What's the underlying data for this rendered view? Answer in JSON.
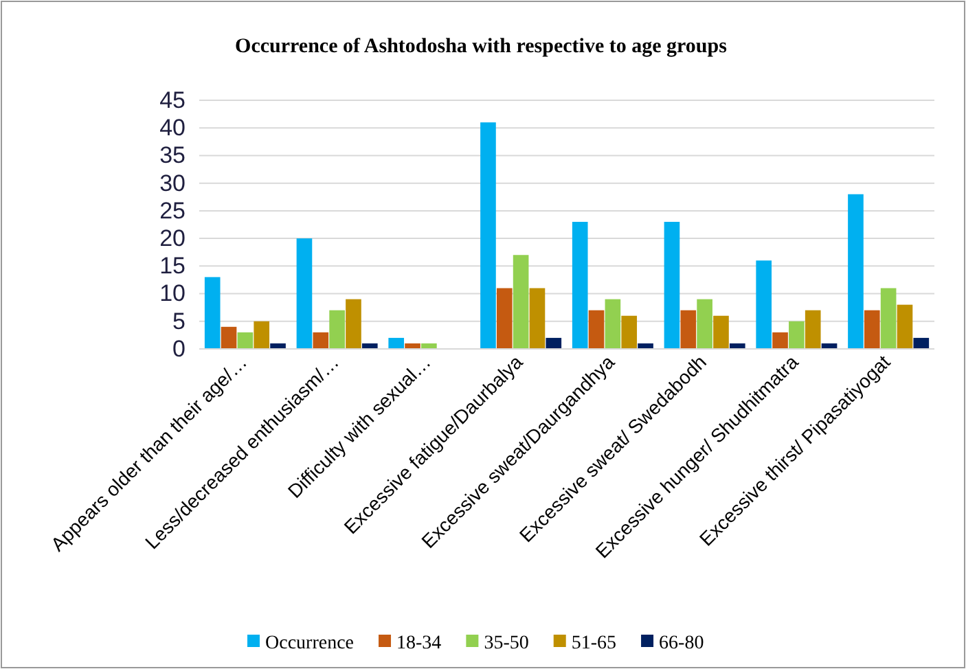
{
  "chart_data": {
    "type": "bar",
    "title": "Occurrence of Ashtodosha with respective to age groups",
    "categories": [
      "Appears older than their age/…",
      "Less/decreased enthusiasm/…",
      "Difficulty with sexual…",
      "Excessive fatigue/Daurbalya",
      "Excessive sweat/Daurgandhya",
      "Excessive sweat/ Swedabodh",
      "Excessive hunger/ Shudhitmatra",
      "Excessive thirst/ Pipasatiyogat"
    ],
    "series": [
      {
        "name": "Occurrence",
        "color": "#00b0f0",
        "values": [
          13,
          20,
          2,
          41,
          23,
          23,
          16,
          28
        ]
      },
      {
        "name": "18-34",
        "color": "#c55a11",
        "values": [
          4,
          3,
          1,
          11,
          7,
          7,
          3,
          7
        ]
      },
      {
        "name": "35-50",
        "color": "#92d050",
        "values": [
          3,
          7,
          1,
          17,
          9,
          9,
          5,
          11
        ]
      },
      {
        "name": "51-65",
        "color": "#bf9000",
        "values": [
          5,
          9,
          0,
          11,
          6,
          6,
          7,
          8
        ]
      },
      {
        "name": "66-80",
        "color": "#002060",
        "values": [
          1,
          1,
          0,
          2,
          1,
          1,
          1,
          2
        ]
      }
    ],
    "ylim": [
      0,
      45
    ],
    "yticks": [
      0,
      5,
      10,
      15,
      20,
      25,
      30,
      35,
      40,
      45
    ],
    "grid": "y",
    "legend": "bottom"
  }
}
